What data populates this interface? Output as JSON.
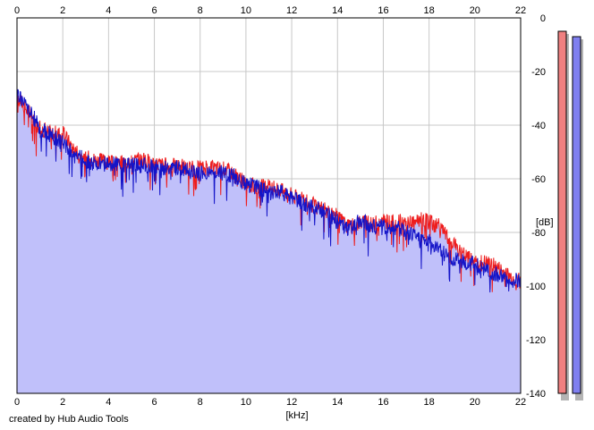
{
  "app": {
    "credit": "created by Hub Audio Tools"
  },
  "colors": {
    "left_channel": "#ee1c1c",
    "right_channel": "#1414c8",
    "fill": "#c0c0fa",
    "grid": "#c8c8c8",
    "left_meter": "#f08080",
    "right_meter": "#8080f0"
  },
  "chart_data": {
    "type": "area",
    "title": "",
    "xlabel": "[kHz]",
    "ylabel": "[dB]",
    "xlim": [
      0,
      22
    ],
    "ylim": [
      -140,
      0
    ],
    "grid": true,
    "x_ticks": [
      "0",
      "2",
      "4",
      "6",
      "8",
      "10",
      "12",
      "14",
      "16",
      "18",
      "20",
      "22"
    ],
    "y_ticks": [
      "0",
      "-20",
      "-40",
      "-60",
      "-80",
      "-100",
      "-120",
      "-140"
    ],
    "x": [
      0,
      0.5,
      1,
      1.5,
      2,
      2.5,
      3,
      3.5,
      4,
      4.5,
      5,
      5.5,
      6,
      6.5,
      7,
      7.5,
      8,
      8.5,
      9,
      9.5,
      10,
      10.5,
      11,
      11.5,
      12,
      12.5,
      13,
      13.5,
      14,
      14.5,
      15,
      15.5,
      16,
      16.5,
      17,
      17.5,
      18,
      18.5,
      19,
      19.5,
      20,
      20.5,
      21,
      21.5,
      22
    ],
    "series": [
      {
        "values": [
          -29,
          -35,
          -41,
          -43,
          -43,
          -49,
          -52,
          -53,
          -54,
          -54,
          -53,
          -53,
          -54,
          -55,
          -55,
          -56,
          -56,
          -56,
          -56,
          -58,
          -62,
          -63,
          -63,
          -64,
          -66,
          -68,
          -70,
          -72,
          -74,
          -78,
          -76,
          -77,
          -76,
          -76,
          -76,
          -75,
          -76,
          -78,
          -84,
          -88,
          -91,
          -91,
          -93,
          -96,
          -98
        ]
      },
      {
        "values": [
          -28,
          -34,
          -41,
          -44,
          -46,
          -51,
          -53,
          -55,
          -54,
          -55,
          -55,
          -55,
          -55,
          -56,
          -56,
          -57,
          -58,
          -57,
          -58,
          -59,
          -62,
          -63,
          -65,
          -65,
          -67,
          -69,
          -71,
          -72,
          -76,
          -79,
          -75,
          -78,
          -78,
          -78,
          -80,
          -81,
          -83,
          -87,
          -90,
          -91,
          -92,
          -94,
          -96,
          -98,
          -98
        ]
      }
    ],
    "peak_meter": {
      "levels_db": [
        -5,
        -7
      ]
    }
  }
}
